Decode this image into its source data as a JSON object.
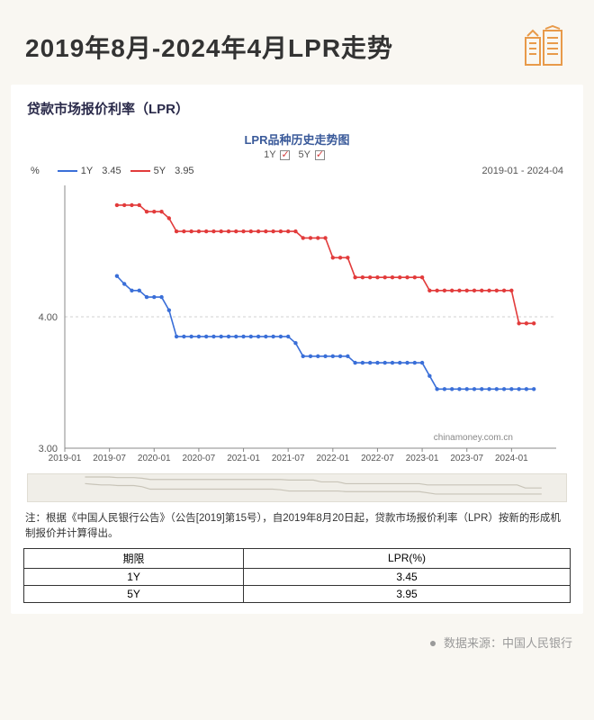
{
  "header": {
    "title": "2019年8月-2024年4月LPR走势",
    "icon_color": "#e89a4a"
  },
  "subtitle": "贷款市场报价利率（LPR）",
  "chart": {
    "type": "line-step",
    "title": "LPR品种历史走势图",
    "checks_label_1y": "1Y",
    "checks_label_5y": "5Y",
    "legend": {
      "pct": "%",
      "s1_label": "1Y",
      "s1_value": "3.45",
      "s1_color": "#3a6fd8",
      "s2_label": "5Y",
      "s2_value": "3.95",
      "s2_color": "#e23b3b",
      "range": "2019-01 - 2024-04"
    },
    "y": {
      "min": 3.0,
      "max": 5.0,
      "ticks": [
        3.0,
        4.0
      ],
      "label_fontsize": 11
    },
    "x": {
      "ticks": [
        "2019-01",
        "2019-07",
        "2020-01",
        "2020-07",
        "2021-01",
        "2021-07",
        "2022-01",
        "2022-07",
        "2023-01",
        "2023-07",
        "2024-01"
      ],
      "label_fontsize": 10
    },
    "grid_color": "#d0d0d0",
    "axis_color": "#888888",
    "marker_radius": 2.2,
    "line_width": 1.6,
    "watermark": "chinamoney.com.cn",
    "series_1y": {
      "color": "#3a6fd8",
      "points": [
        [
          7,
          4.31
        ],
        [
          8,
          4.25
        ],
        [
          9,
          4.2
        ],
        [
          10,
          4.2
        ],
        [
          11,
          4.15
        ],
        [
          12,
          4.15
        ],
        [
          13,
          4.15
        ],
        [
          14,
          4.05
        ],
        [
          15,
          3.85
        ],
        [
          16,
          3.85
        ],
        [
          17,
          3.85
        ],
        [
          18,
          3.85
        ],
        [
          19,
          3.85
        ],
        [
          20,
          3.85
        ],
        [
          21,
          3.85
        ],
        [
          22,
          3.85
        ],
        [
          23,
          3.85
        ],
        [
          24,
          3.85
        ],
        [
          25,
          3.85
        ],
        [
          26,
          3.85
        ],
        [
          27,
          3.85
        ],
        [
          28,
          3.85
        ],
        [
          29,
          3.85
        ],
        [
          30,
          3.85
        ],
        [
          31,
          3.8
        ],
        [
          32,
          3.7
        ],
        [
          33,
          3.7
        ],
        [
          34,
          3.7
        ],
        [
          35,
          3.7
        ],
        [
          36,
          3.7
        ],
        [
          37,
          3.7
        ],
        [
          38,
          3.7
        ],
        [
          39,
          3.65
        ],
        [
          40,
          3.65
        ],
        [
          41,
          3.65
        ],
        [
          42,
          3.65
        ],
        [
          43,
          3.65
        ],
        [
          44,
          3.65
        ],
        [
          45,
          3.65
        ],
        [
          46,
          3.65
        ],
        [
          47,
          3.65
        ],
        [
          48,
          3.65
        ],
        [
          49,
          3.55
        ],
        [
          50,
          3.45
        ],
        [
          51,
          3.45
        ],
        [
          52,
          3.45
        ],
        [
          53,
          3.45
        ],
        [
          54,
          3.45
        ],
        [
          55,
          3.45
        ],
        [
          56,
          3.45
        ],
        [
          57,
          3.45
        ],
        [
          58,
          3.45
        ],
        [
          59,
          3.45
        ],
        [
          60,
          3.45
        ],
        [
          61,
          3.45
        ],
        [
          62,
          3.45
        ],
        [
          63,
          3.45
        ]
      ]
    },
    "series_5y": {
      "color": "#e23b3b",
      "points": [
        [
          7,
          4.85
        ],
        [
          8,
          4.85
        ],
        [
          9,
          4.85
        ],
        [
          10,
          4.85
        ],
        [
          11,
          4.8
        ],
        [
          12,
          4.8
        ],
        [
          13,
          4.8
        ],
        [
          14,
          4.75
        ],
        [
          15,
          4.65
        ],
        [
          16,
          4.65
        ],
        [
          17,
          4.65
        ],
        [
          18,
          4.65
        ],
        [
          19,
          4.65
        ],
        [
          20,
          4.65
        ],
        [
          21,
          4.65
        ],
        [
          22,
          4.65
        ],
        [
          23,
          4.65
        ],
        [
          24,
          4.65
        ],
        [
          25,
          4.65
        ],
        [
          26,
          4.65
        ],
        [
          27,
          4.65
        ],
        [
          28,
          4.65
        ],
        [
          29,
          4.65
        ],
        [
          30,
          4.65
        ],
        [
          31,
          4.65
        ],
        [
          32,
          4.6
        ],
        [
          33,
          4.6
        ],
        [
          34,
          4.6
        ],
        [
          35,
          4.6
        ],
        [
          36,
          4.45
        ],
        [
          37,
          4.45
        ],
        [
          38,
          4.45
        ],
        [
          39,
          4.3
        ],
        [
          40,
          4.3
        ],
        [
          41,
          4.3
        ],
        [
          42,
          4.3
        ],
        [
          43,
          4.3
        ],
        [
          44,
          4.3
        ],
        [
          45,
          4.3
        ],
        [
          46,
          4.3
        ],
        [
          47,
          4.3
        ],
        [
          48,
          4.3
        ],
        [
          49,
          4.2
        ],
        [
          50,
          4.2
        ],
        [
          51,
          4.2
        ],
        [
          52,
          4.2
        ],
        [
          53,
          4.2
        ],
        [
          54,
          4.2
        ],
        [
          55,
          4.2
        ],
        [
          56,
          4.2
        ],
        [
          57,
          4.2
        ],
        [
          58,
          4.2
        ],
        [
          59,
          4.2
        ],
        [
          60,
          4.2
        ],
        [
          61,
          3.95
        ],
        [
          62,
          3.95
        ],
        [
          63,
          3.95
        ]
      ]
    }
  },
  "note": "注：根据《中国人民银行公告》（公告[2019]第15号），自2019年8月20日起，贷款市场报价利率（LPR）按新的形成机制报价并计算得出。",
  "table": {
    "columns": [
      "期限",
      "LPR(%)"
    ],
    "rows": [
      [
        "1Y",
        "3.45"
      ],
      [
        "5Y",
        "3.95"
      ]
    ]
  },
  "source": "数据来源：中国人民银行"
}
